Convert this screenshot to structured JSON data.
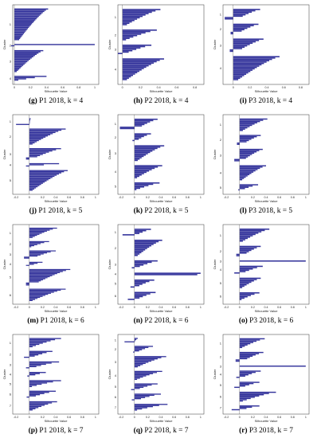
{
  "figure": {
    "bar_color": "#33339b",
    "axis_color": "#333333",
    "xlabel": "Silhouette Value",
    "ylabel": "Cluster"
  },
  "chart_data": [
    {
      "type": "bar",
      "id": "g",
      "label": "(g)",
      "caption": "P1 2018, k = 4",
      "xticks": [
        "0",
        "0.2",
        "0.4",
        "0.6",
        "0.8",
        "1"
      ],
      "xlim": [
        -0.02,
        1.05
      ],
      "clusters": [
        {
          "id": "1",
          "size": 26,
          "max": 0.42,
          "min": 0.06,
          "neg": 0
        },
        {
          "id": "2",
          "size": 2,
          "max": 1.0,
          "min": 0.85,
          "neg": 0.04
        },
        {
          "id": "3",
          "size": 18,
          "max": 0.36,
          "min": 0.03,
          "neg": 0
        },
        {
          "id": "4",
          "size": 4,
          "max": 0.4,
          "min": 0.05,
          "neg": 0
        }
      ]
    },
    {
      "type": "bar",
      "id": "h",
      "label": "(h)",
      "caption": "P2 2018, k = 4",
      "xticks": [
        "0",
        "0.2",
        "0.4",
        "0.6",
        "0.8"
      ],
      "xlim": [
        -0.05,
        0.9
      ],
      "clusters": [
        {
          "id": "1",
          "size": 12,
          "max": 0.42,
          "min": 0.05,
          "neg": 0
        },
        {
          "id": "2",
          "size": 8,
          "max": 0.38,
          "min": 0.04,
          "neg": 0
        },
        {
          "id": "3",
          "size": 7,
          "max": 0.32,
          "min": 0.03,
          "neg": 0.05
        },
        {
          "id": "4",
          "size": 16,
          "max": 0.46,
          "min": 0.05,
          "neg": 0
        }
      ]
    },
    {
      "type": "bar",
      "id": "i",
      "label": "(i)",
      "caption": "P3 2018, k = 4",
      "xticks": [
        "0",
        "0.2",
        "0.4",
        "0.6",
        "0.8"
      ],
      "xlim": [
        -0.12,
        0.9
      ],
      "clusters": [
        {
          "id": "1",
          "size": 8,
          "max": 0.32,
          "min": 0.05,
          "neg": 0.1
        },
        {
          "id": "2",
          "size": 8,
          "max": 0.3,
          "min": 0.04,
          "neg": 0.03
        },
        {
          "id": "3",
          "size": 10,
          "max": 0.36,
          "min": 0.05,
          "neg": 0.04
        },
        {
          "id": "4",
          "size": 18,
          "max": 0.55,
          "min": 0.06,
          "neg": 0
        }
      ]
    },
    {
      "type": "bar",
      "id": "j",
      "label": "(j)",
      "caption": "P1 2018, k = 5",
      "xticks": [
        "-0.2",
        "0",
        "0.2",
        "0.4",
        "0.6",
        "0.8",
        "1"
      ],
      "xlim": [
        -0.25,
        1.05
      ],
      "clusters": [
        {
          "id": "1",
          "size": 6,
          "max": 0.02,
          "min": 0.0,
          "neg": 0.2
        },
        {
          "id": "2",
          "size": 14,
          "max": 0.55,
          "min": 0.05,
          "neg": 0
        },
        {
          "id": "3",
          "size": 10,
          "max": 0.48,
          "min": 0.04,
          "neg": 0.05
        },
        {
          "id": "4",
          "size": 3,
          "max": 0.45,
          "min": 0.05,
          "neg": 0.05
        },
        {
          "id": "5",
          "size": 18,
          "max": 0.58,
          "min": 0.05,
          "neg": 0
        }
      ]
    },
    {
      "type": "bar",
      "id": "k",
      "label": "(k)",
      "caption": "P2 2018, k = 5",
      "xticks": [
        "-0.2",
        "0",
        "0.2",
        "0.4",
        "0.6",
        "0.8",
        "1"
      ],
      "xlim": [
        -0.25,
        1.05
      ],
      "clusters": [
        {
          "id": "1",
          "size": 8,
          "max": 0.35,
          "min": 0.04,
          "neg": 0.22
        },
        {
          "id": "2",
          "size": 6,
          "max": 0.25,
          "min": 0.03,
          "neg": 0.03
        },
        {
          "id": "3",
          "size": 12,
          "max": 0.45,
          "min": 0.05,
          "neg": 0
        },
        {
          "id": "4",
          "size": 10,
          "max": 0.42,
          "min": 0.04,
          "neg": 0
        },
        {
          "id": "5",
          "size": 6,
          "max": 0.38,
          "min": 0.03,
          "neg": 0
        }
      ]
    },
    {
      "type": "bar",
      "id": "l",
      "label": "(l)",
      "caption": "P3 2018, k = 5",
      "xticks": [
        "-0.2",
        "0",
        "0.2",
        "0.4",
        "0.6",
        "0.8",
        "1"
      ],
      "xlim": [
        -0.25,
        1.05
      ],
      "clusters": [
        {
          "id": "1",
          "size": 10,
          "max": 0.42,
          "min": 0.05,
          "neg": 0
        },
        {
          "id": "2",
          "size": 8,
          "max": 0.32,
          "min": 0.04,
          "neg": 0.04
        },
        {
          "id": "3",
          "size": 10,
          "max": 0.35,
          "min": 0.04,
          "neg": 0.08
        },
        {
          "id": "4",
          "size": 12,
          "max": 0.4,
          "min": 0.04,
          "neg": 0
        },
        {
          "id": "5",
          "size": 5,
          "max": 0.28,
          "min": 0.03,
          "neg": 0.02
        }
      ]
    },
    {
      "type": "bar",
      "id": "m",
      "label": "(m)",
      "caption": "P1 2018, k = 6",
      "xticks": [
        "-0.2",
        "0",
        "0.2",
        "0.4",
        "0.6",
        "0.8",
        "1"
      ],
      "xlim": [
        -0.25,
        1.05
      ],
      "clusters": [
        {
          "id": "1",
          "size": 10,
          "max": 0.42,
          "min": 0.05,
          "neg": 0
        },
        {
          "id": "2",
          "size": 6,
          "max": 0.3,
          "min": 0.03,
          "neg": 0
        },
        {
          "id": "3",
          "size": 8,
          "max": 0.4,
          "min": 0.04,
          "neg": 0.08
        },
        {
          "id": "4",
          "size": 4,
          "max": 0.2,
          "min": 0.02,
          "neg": 0.05
        },
        {
          "id": "5",
          "size": 16,
          "max": 0.62,
          "min": 0.05,
          "neg": 0.05
        },
        {
          "id": "6",
          "size": 12,
          "max": 0.55,
          "min": 0.05,
          "neg": 0
        }
      ]
    },
    {
      "type": "bar",
      "id": "n",
      "label": "(n)",
      "caption": "P2 2018, k = 6",
      "xticks": [
        "-0.2",
        "0",
        "0.2",
        "0.4",
        "0.6",
        "0.8",
        "1"
      ],
      "xlim": [
        -0.25,
        1.05
      ],
      "clusters": [
        {
          "id": "1",
          "size": 5,
          "max": 0.25,
          "min": 0.03,
          "neg": 0.18
        },
        {
          "id": "2",
          "size": 12,
          "max": 0.42,
          "min": 0.05,
          "neg": 0
        },
        {
          "id": "3",
          "size": 6,
          "max": 0.35,
          "min": 0.03,
          "neg": 0.04
        },
        {
          "id": "4",
          "size": 2,
          "max": 1.0,
          "min": 0.95,
          "neg": 0
        },
        {
          "id": "5",
          "size": 6,
          "max": 0.3,
          "min": 0.03,
          "neg": 0.06
        },
        {
          "id": "6",
          "size": 6,
          "max": 0.32,
          "min": 0.03,
          "neg": 0.1
        }
      ]
    },
    {
      "type": "bar",
      "id": "o",
      "label": "(o)",
      "caption": "P3 2018, k = 6",
      "xticks": [
        "-0.2",
        "0",
        "0.2",
        "0.4",
        "0.6",
        "0.8",
        "1"
      ],
      "xlim": [
        -0.25,
        1.05
      ],
      "clusters": [
        {
          "id": "1",
          "size": 10,
          "max": 0.45,
          "min": 0.05,
          "neg": 0
        },
        {
          "id": "2",
          "size": 8,
          "max": 0.32,
          "min": 0.04,
          "neg": 0.05
        },
        {
          "id": "3",
          "size": 1,
          "max": 1.0,
          "min": 1.0,
          "neg": 0
        },
        {
          "id": "4",
          "size": 6,
          "max": 0.35,
          "min": 0.04,
          "neg": 0.08
        },
        {
          "id": "5",
          "size": 8,
          "max": 0.32,
          "min": 0.04,
          "neg": 0
        },
        {
          "id": "6",
          "size": 6,
          "max": 0.3,
          "min": 0.03,
          "neg": 0
        }
      ]
    },
    {
      "type": "bar",
      "id": "p",
      "label": "(p)",
      "caption": "P1 2018, k = 7",
      "xticks": [
        "-0.2",
        "0",
        "0.2",
        "0.4",
        "0.6",
        "0.8",
        "1"
      ],
      "xlim": [
        -0.25,
        1.05
      ],
      "clusters": [
        {
          "id": "1",
          "size": 8,
          "max": 0.48,
          "min": 0.05,
          "neg": 0
        },
        {
          "id": "2",
          "size": 6,
          "max": 0.35,
          "min": 0.03,
          "neg": 0.08
        },
        {
          "id": "3",
          "size": 6,
          "max": 0.45,
          "min": 0.04,
          "neg": 0.05
        },
        {
          "id": "4",
          "size": 4,
          "max": 0.25,
          "min": 0.03,
          "neg": 0.03
        },
        {
          "id": "5",
          "size": 6,
          "max": 0.48,
          "min": 0.04,
          "neg": 0
        },
        {
          "id": "6",
          "size": 6,
          "max": 0.4,
          "min": 0.04,
          "neg": 0.04
        },
        {
          "id": "7",
          "size": 8,
          "max": 0.42,
          "min": 0.05,
          "neg": 0
        }
      ]
    },
    {
      "type": "bar",
      "id": "q",
      "label": "(q)",
      "caption": "P2 2018, k = 7",
      "xticks": [
        "-0.2",
        "0",
        "0.2",
        "0.4",
        "0.6",
        "0.8",
        "1"
      ],
      "xlim": [
        -0.25,
        1.05
      ],
      "clusters": [
        {
          "id": "1",
          "size": 4,
          "max": 0.05,
          "min": 0.0,
          "neg": 0.15
        },
        {
          "id": "2",
          "size": 6,
          "max": 0.28,
          "min": 0.03,
          "neg": 0.02
        },
        {
          "id": "3",
          "size": 10,
          "max": 0.48,
          "min": 0.05,
          "neg": 0
        },
        {
          "id": "4",
          "size": 8,
          "max": 0.42,
          "min": 0.04,
          "neg": 0
        },
        {
          "id": "5",
          "size": 6,
          "max": 0.35,
          "min": 0.03,
          "neg": 0.05
        },
        {
          "id": "6",
          "size": 6,
          "max": 0.4,
          "min": 0.04,
          "neg": 0.04
        },
        {
          "id": "7",
          "size": 6,
          "max": 0.5,
          "min": 0.04,
          "neg": 0
        }
      ]
    },
    {
      "type": "bar",
      "id": "r",
      "label": "(r)",
      "caption": "P3 2018, k = 7",
      "xticks": [
        "-0.2",
        "0",
        "0.2",
        "0.4",
        "0.6",
        "0.8",
        "1"
      ],
      "xlim": [
        -0.25,
        1.05
      ],
      "clusters": [
        {
          "id": "1",
          "size": 8,
          "max": 0.38,
          "min": 0.04,
          "neg": 0
        },
        {
          "id": "2",
          "size": 8,
          "max": 0.36,
          "min": 0.04,
          "neg": 0.06
        },
        {
          "id": "3",
          "size": 1,
          "max": 1.0,
          "min": 1.0,
          "neg": 0
        },
        {
          "id": "4",
          "size": 6,
          "max": 0.32,
          "min": 0.04,
          "neg": 0.05
        },
        {
          "id": "5",
          "size": 5,
          "max": 0.3,
          "min": 0.03,
          "neg": 0.08
        },
        {
          "id": "6",
          "size": 8,
          "max": 0.55,
          "min": 0.05,
          "neg": 0
        },
        {
          "id": "7",
          "size": 4,
          "max": 0.3,
          "min": 0.03,
          "neg": 0.12
        }
      ]
    }
  ]
}
